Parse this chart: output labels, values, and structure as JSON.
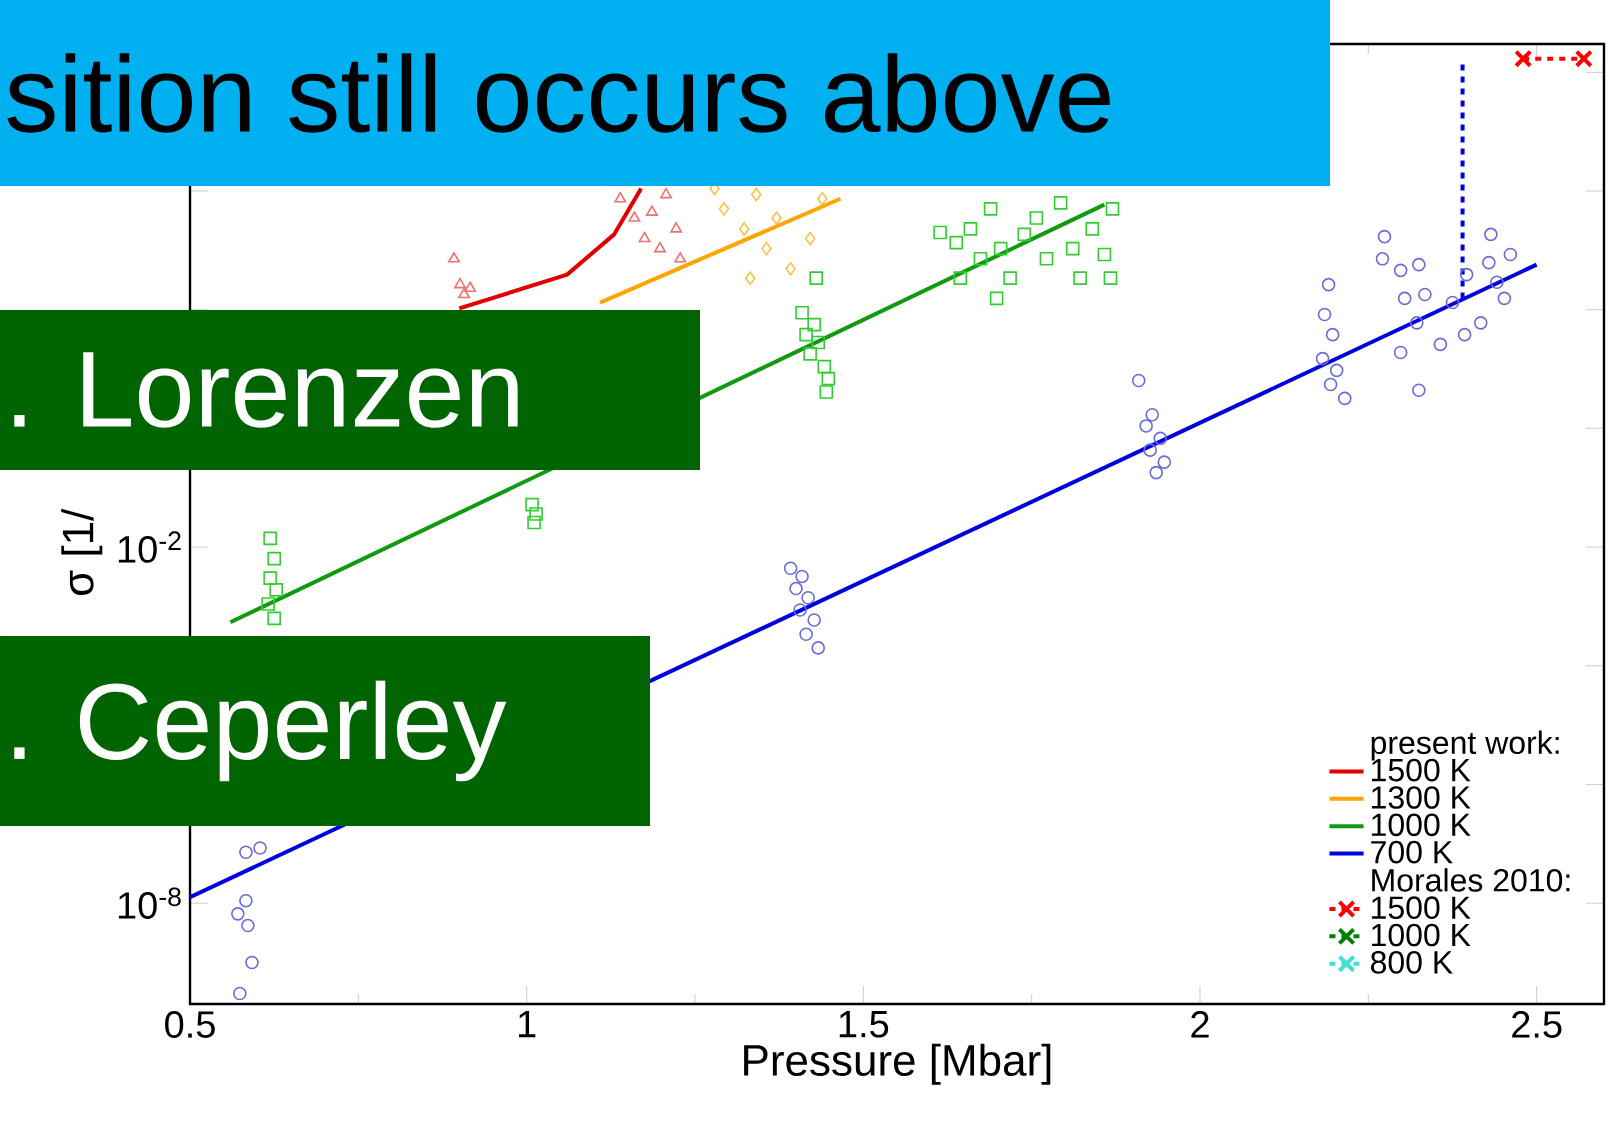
{
  "chart_data": {
    "type": "scatter",
    "xlabel": "Pressure [Mbar]",
    "ylabel": "σ [1/",
    "legend_title": "present work:",
    "log": "y",
    "legend": "bottom right",
    "xlim": [
      0.5,
      2.6
    ],
    "xticks": [
      0.5,
      1,
      1.5,
      2,
      2.5
    ],
    "ylim": [
      2e-10,
      3000000.0
    ],
    "yticks": [
      {
        "value": 1e-08,
        "label": "10$^{-8}$"
      },
      {
        "value": 1e-06,
        "label": null
      },
      {
        "value": 0.0001,
        "label": null
      },
      {
        "value": 0.01,
        "label": "10$^{-2}$"
      },
      {
        "value": 1,
        "label": null
      },
      {
        "value": 100,
        "label": null
      },
      {
        "value": 10000.0,
        "label": null
      },
      {
        "value": 1000000.0,
        "label": null
      }
    ],
    "annotations": [
      "sition still occurs above",
      ". Lorenzen",
      ". Ceperley",
      "Morales 2010:"
    ],
    "series": [
      {
        "color": "#f07070",
        "marker": "triangle",
        "x": [
          0.892,
          0.901,
          0.916,
          0.907,
          1.139,
          1.16,
          1.175,
          1.186,
          1.198,
          1.207,
          1.222,
          1.228
        ],
        "values": [
          720,
          265,
          230,
          180,
          7400,
          3500,
          1580,
          4400,
          1070,
          8700,
          2300,
          720
        ]
      },
      {
        "color": "#ffc040",
        "marker": "diamond",
        "x": [
          1.279,
          1.293,
          1.323,
          1.341,
          1.356,
          1.371,
          1.392,
          1.421,
          1.332,
          1.439
        ],
        "values": [
          11000,
          5000,
          2300,
          8700,
          1070,
          3500,
          490,
          1580,
          340,
          7400
        ]
      },
      {
        "color": "#33cc33",
        "marker": "square",
        "x": [
          0.619,
          0.625,
          0.619,
          0.628,
          0.616,
          0.625,
          1.008,
          1.014,
          1.011,
          1.43,
          1.409,
          1.427,
          1.415,
          1.433,
          1.421,
          1.442,
          1.448,
          1.445,
          1.614,
          1.638,
          1.659,
          1.674,
          1.689,
          1.704,
          1.718,
          1.739,
          1.757,
          1.772,
          1.793,
          1.811,
          1.822,
          1.84,
          1.858,
          1.867,
          1.87,
          1.698,
          1.644
        ],
        "values": [
          0.014,
          0.0064,
          0.003,
          0.0019,
          0.0011,
          0.00063,
          0.052,
          0.036,
          0.026,
          340,
          89,
          56,
          38,
          28,
          18,
          11,
          6.9,
          4.1,
          2000,
          1350,
          2300,
          720,
          5000,
          1070,
          340,
          1860,
          3500,
          720,
          6300,
          1070,
          340,
          2300,
          850,
          340,
          5000,
          155,
          340
        ]
      },
      {
        "color": "#6a6ad8",
        "marker": "circle",
        "x": [
          0.583,
          0.604,
          0.583,
          0.571,
          0.586,
          0.592,
          0.574,
          1.392,
          1.409,
          1.4,
          1.418,
          1.406,
          1.427,
          1.415,
          1.433,
          1.909,
          1.929,
          1.92,
          1.941,
          1.926,
          1.947,
          1.935,
          2.191,
          2.185,
          2.197,
          2.182,
          2.203,
          2.194,
          2.215,
          2.274,
          2.271,
          2.298,
          2.325,
          2.304,
          2.334,
          2.322,
          2.298,
          2.325,
          2.357,
          2.393,
          2.375,
          2.432,
          2.429,
          2.452,
          2.417,
          2.441,
          2.396,
          2.461
        ],
        "values": [
          7.2e-08,
          8.5e-08,
          1.1e-08,
          6.6e-09,
          4.2e-09,
          1e-09,
          3e-10,
          0.0044,
          0.0032,
          0.002,
          0.0014,
          0.00087,
          0.00059,
          0.00034,
          0.0002,
          6.4,
          1.7,
          1.1,
          0.68,
          0.43,
          0.27,
          0.18,
          265,
          83,
          38,
          15,
          9.5,
          5.5,
          3.2,
          1700,
          720,
          460,
          575,
          155,
          180,
          60,
          19,
          4.4,
          26,
          38,
          132,
          1860,
          620,
          155,
          60,
          290,
          390,
          850
        ]
      },
      {
        "type": "line",
        "name": "1500 K",
        "color": "#e00000",
        "x": [
          0.9,
          1.06,
          1.13,
          1.17
        ],
        "values": [
          105,
          390,
          1860,
          11000
        ]
      },
      {
        "type": "line",
        "name": "1300 K",
        "color": "#ffa500",
        "x": [
          1.109,
          1.466
        ],
        "values": [
          132,
          7400
        ]
      },
      {
        "type": "line",
        "name": "1000 K",
        "color": "#119911",
        "x": [
          0.56,
          1.858
        ],
        "values": [
          0.00054,
          5900
        ]
      },
      {
        "type": "line",
        "name": "700 K",
        "color": "#0000dd",
        "x": [
          0.5,
          2.5
        ],
        "values": [
          1.26e-08,
          575
        ]
      },
      {
        "type": "line",
        "color": "#0000dd",
        "line_style": "dashed",
        "x": [
          2.39,
          2.39
        ],
        "values": [
          155,
          1700000
        ]
      },
      {
        "type": "line",
        "name": "1500 K",
        "color": "#ff0000",
        "line_style": "dashed",
        "marker": "cross",
        "x": [
          2.48,
          2.57
        ],
        "values": [
          1700000,
          1700000
        ]
      },
      {
        "type": "line",
        "name": "1000 K",
        "color": "#008000",
        "line_style": "dashed",
        "marker": "cross"
      },
      {
        "type": "line",
        "name": "800 K",
        "color": "#40e0d0",
        "line_style": "dashed",
        "marker": "cross"
      }
    ]
  }
}
